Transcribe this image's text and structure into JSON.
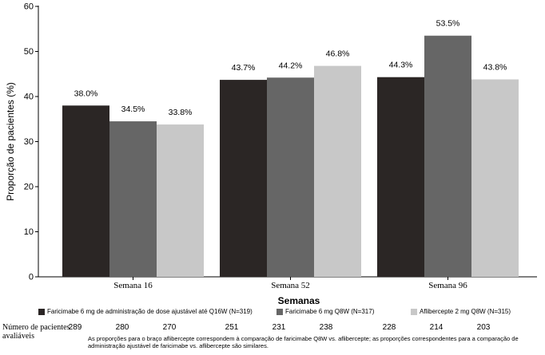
{
  "chart_data": {
    "type": "bar",
    "categories": [
      "Semana 16",
      "Semana 52",
      "Semana 96"
    ],
    "series": [
      {
        "name": "Faricimabe 6 mg de administração de dose ajustável até Q16W (N=319)",
        "values": [
          38.0,
          43.7,
          44.3
        ],
        "labels": [
          "38.0%",
          "43.7%",
          "44.3%"
        ],
        "color": "#2b2625"
      },
      {
        "name": "Faricimabe 6 mg Q8W (N=317)",
        "values": [
          34.5,
          44.2,
          53.5
        ],
        "labels": [
          "34.5%",
          "44.2%",
          "53.5%"
        ],
        "color": "#666666"
      },
      {
        "name": "Aflibercepte 2 mg Q8W (N=315)",
        "values": [
          33.8,
          46.8,
          43.8
        ],
        "labels": [
          "33.8%",
          "46.8%",
          "43.8%"
        ],
        "color": "#c8c8c8"
      }
    ],
    "xlabel": "Semanas",
    "ylabel": "Proporção de pacientes (%)",
    "ylim": [
      0,
      60
    ],
    "yticks": [
      0,
      10,
      20,
      30,
      40,
      50,
      60
    ],
    "grid": false,
    "legend": "bottom"
  },
  "patients": {
    "label": "Número de pacientes avaliáveis",
    "counts": [
      [
        "289",
        "280",
        "270"
      ],
      [
        "251",
        "231",
        "238"
      ],
      [
        "228",
        "214",
        "203"
      ]
    ]
  },
  "footnote": "As proporções para o braço aflibercepte correspondem à comparação de faricimabe Q8W vs. aflibercepte; as proporções correspondentes para a comparação de administração ajustável de faricimabe vs. aflibercepte são similares."
}
